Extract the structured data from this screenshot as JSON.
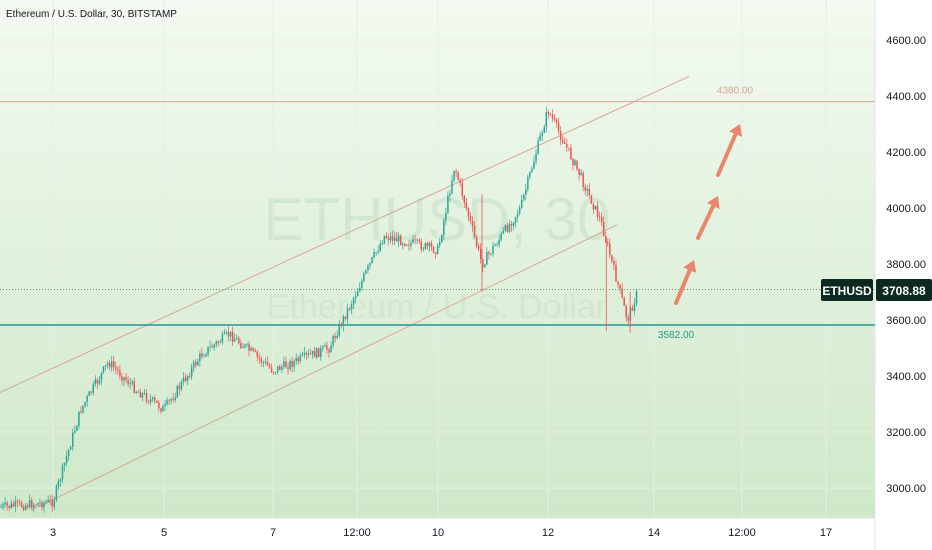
{
  "header": {
    "title": "Ethereum / U.S. Dollar, 30, BITSTAMP"
  },
  "watermark": {
    "symbol": "ETHUSD, 30",
    "description": "Ethereum / U.S. Dollar"
  },
  "price_tag": {
    "symbol": "ETHUSD",
    "value": "3708.88"
  },
  "levels": [
    {
      "label": "4380.00",
      "price": 4380,
      "color": "#d7a592"
    },
    {
      "label": "3582.00",
      "price": 3582,
      "color": "#26978c"
    }
  ],
  "colors": {
    "background_top": "#f3faf1",
    "background_bottom": "#cfe8c9",
    "candle_up": "#26a69a",
    "candle_down": "#ef5350",
    "arrow": "#e8876c",
    "channel": "#d3a795",
    "price_tag_bg": "#0d2a22"
  },
  "chart_data": {
    "type": "candlestick",
    "title": "Ethereum / U.S. Dollar, 30, BITSTAMP",
    "x_tick_labels": [
      "3",
      "5",
      "7",
      "12:00",
      "10",
      "12",
      "14",
      "12:00",
      "17"
    ],
    "y_tick_labels": [
      "3000.00",
      "3200.00",
      "3400.00",
      "3600.00",
      "3800.00",
      "4000.00",
      "4200.00",
      "4400.00",
      "4600.00"
    ],
    "ylim": [
      2920,
      4700
    ],
    "last_price": 3708.88,
    "horizontal_levels": [
      4380,
      3582
    ],
    "price_path_approx": [
      {
        "x": "3",
        "price": 2950
      },
      {
        "x": "3.5",
        "price": 3280
      },
      {
        "x": "4",
        "price": 3450
      },
      {
        "x": "4.5",
        "price": 3350
      },
      {
        "x": "5",
        "price": 3280
      },
      {
        "x": "5.7",
        "price": 3480
      },
      {
        "x": "6.2",
        "price": 3550
      },
      {
        "x": "7",
        "price": 3420
      },
      {
        "x": "8",
        "price": 3500
      },
      {
        "x": "9",
        "price": 3900
      },
      {
        "x": "10",
        "price": 3850
      },
      {
        "x": "10.3",
        "price": 4150
      },
      {
        "x": "10.8",
        "price": 3800
      },
      {
        "x": "11.5",
        "price": 4000
      },
      {
        "x": "12",
        "price": 4350
      },
      {
        "x": "12.6",
        "price": 4120
      },
      {
        "x": "13",
        "price": 3950
      },
      {
        "x": "13.5",
        "price": 3600
      },
      {
        "x": "13.7",
        "price": 3709
      }
    ],
    "channel_lines": [
      {
        "name": "upper",
        "from": {
          "x": "1.7",
          "price": 3310
        },
        "to": {
          "x": "14.6",
          "price": 4470
        }
      },
      {
        "name": "lower",
        "from": {
          "x": "2.6",
          "price": 2920
        },
        "to": {
          "x": "13.3",
          "price": 3940
        }
      }
    ],
    "annotations": [
      "4380.00",
      "3582.00"
    ]
  }
}
